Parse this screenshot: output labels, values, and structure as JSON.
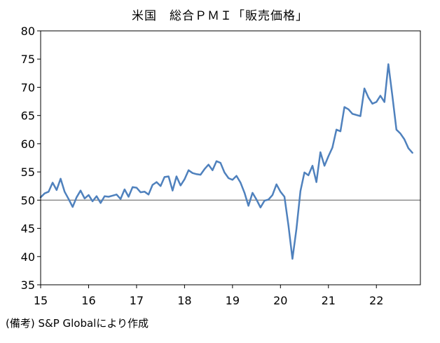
{
  "chart_data": {
    "type": "line",
    "title": "米国　総合ＰＭＩ「販売価格」",
    "xlabel": "",
    "ylabel": "",
    "ylim": [
      35,
      80
    ],
    "yticks": [
      "35",
      "40",
      "45",
      "50",
      "55",
      "60",
      "65",
      "70",
      "75",
      "80"
    ],
    "xlim": [
      2015,
      2022.917
    ],
    "xticks": [
      "15",
      "16",
      "17",
      "18",
      "19",
      "20",
      "21",
      "22"
    ],
    "reference_line": 50,
    "grid": false,
    "legend": "none",
    "series": [
      {
        "color": "#4f81bd",
        "x": [
          2015.0,
          2015.083,
          2015.167,
          2015.25,
          2015.333,
          2015.417,
          2015.5,
          2015.583,
          2015.667,
          2015.75,
          2015.833,
          2015.917,
          2016.0,
          2016.083,
          2016.167,
          2016.25,
          2016.333,
          2016.417,
          2016.5,
          2016.583,
          2016.667,
          2016.75,
          2016.833,
          2016.917,
          2017.0,
          2017.083,
          2017.167,
          2017.25,
          2017.333,
          2017.417,
          2017.5,
          2017.583,
          2017.667,
          2017.75,
          2017.833,
          2017.917,
          2018.0,
          2018.083,
          2018.167,
          2018.25,
          2018.333,
          2018.417,
          2018.5,
          2018.583,
          2018.667,
          2018.75,
          2018.833,
          2018.917,
          2019.0,
          2019.083,
          2019.167,
          2019.25,
          2019.333,
          2019.417,
          2019.5,
          2019.583,
          2019.667,
          2019.75,
          2019.833,
          2019.917,
          2020.0,
          2020.083,
          2020.167,
          2020.25,
          2020.333,
          2020.417,
          2020.5,
          2020.583,
          2020.667,
          2020.75,
          2020.833,
          2020.917,
          2021.0,
          2021.083,
          2021.167,
          2021.25,
          2021.333,
          2021.417,
          2021.5,
          2021.583,
          2021.667,
          2021.75,
          2021.833,
          2021.917,
          2022.0,
          2022.083,
          2022.167,
          2022.25,
          2022.333,
          2022.417,
          2022.5,
          2022.583,
          2022.667,
          2022.75
        ],
        "values": [
          50.5,
          51.2,
          51.5,
          53.1,
          51.8,
          53.8,
          51.5,
          50.2,
          48.8,
          50.5,
          51.7,
          50.3,
          50.9,
          49.8,
          50.7,
          49.5,
          50.7,
          50.6,
          50.8,
          51.0,
          50.2,
          51.9,
          50.6,
          52.3,
          52.2,
          51.4,
          51.5,
          51.0,
          52.7,
          53.2,
          52.5,
          54.1,
          54.2,
          51.7,
          54.2,
          52.6,
          53.7,
          55.3,
          54.8,
          54.6,
          54.5,
          55.5,
          56.3,
          55.3,
          56.9,
          56.6,
          54.9,
          53.9,
          53.6,
          54.3,
          53.1,
          51.3,
          49.0,
          51.3,
          50.1,
          48.7,
          49.9,
          50.1,
          50.9,
          52.8,
          51.5,
          50.6,
          45.5,
          39.6,
          44.9,
          51.6,
          54.9,
          54.4,
          56.1,
          53.2,
          58.5,
          56.1,
          57.8,
          59.3,
          62.5,
          62.2,
          66.5,
          66.1,
          65.3,
          65.1,
          64.9,
          69.8,
          68.2,
          67.1,
          67.4,
          68.5,
          67.4,
          74.1,
          68.5,
          62.5,
          61.8,
          60.8,
          59.2,
          58.4
        ]
      }
    ]
  },
  "source_note": "(備考) S&P Globalにより作成"
}
